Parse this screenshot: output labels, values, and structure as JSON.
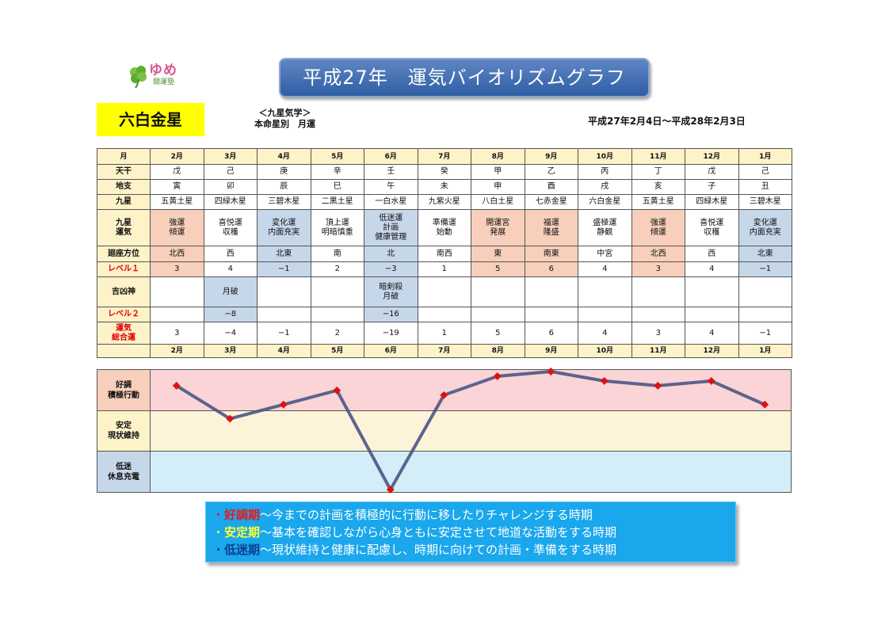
{
  "header": {
    "logo_text": "ゆめ",
    "logo_sub": "開運塾",
    "title": "平成27年　運気バイオリズムグラフ",
    "star": "六白金星",
    "subtitle_line1": "＜九星気学＞",
    "subtitle_line2": "本命星別　月運",
    "period": "平成27年2月4日～平成28年2月3日"
  },
  "row_labels": {
    "month": "月",
    "tenkan": "天干",
    "chishi": "地支",
    "kusei": "九星",
    "kusei_unki_1": "九星",
    "kusei_unki_2": "運気",
    "direction": "廻座方位",
    "level1": "レベル１",
    "kikkyo": "吉凶神",
    "level2": "レベル２",
    "total_1": "運気",
    "total_2": "総合運"
  },
  "months": [
    "2月",
    "3月",
    "4月",
    "5月",
    "6月",
    "7月",
    "8月",
    "9月",
    "10月",
    "11月",
    "12月",
    "1月"
  ],
  "tenkan": [
    "戊",
    "己",
    "庚",
    "辛",
    "壬",
    "癸",
    "甲",
    "乙",
    "丙",
    "丁",
    "戊",
    "己"
  ],
  "chishi": [
    "寅",
    "卯",
    "辰",
    "巳",
    "午",
    "未",
    "申",
    "酉",
    "戌",
    "亥",
    "子",
    "丑"
  ],
  "kusei": [
    "五黄土星",
    "四緑木星",
    "三碧木星",
    "二黒土星",
    "一白水星",
    "九紫火星",
    "八白土星",
    "七赤金星",
    "六白金星",
    "五黄土星",
    "四緑木星",
    "三碧木星"
  ],
  "unki": [
    [
      "強運",
      "傾運"
    ],
    [
      "喜悦運",
      "収穫"
    ],
    [
      "変化運",
      "内面充実"
    ],
    [
      "頂上運",
      "明暗慎重"
    ],
    [
      "低迷運",
      "計画",
      "健康管理"
    ],
    [
      "準備運",
      "始動"
    ],
    [
      "開運宮",
      "発展"
    ],
    [
      "福運",
      "隆盛"
    ],
    [
      "盛極運",
      "静観"
    ],
    [
      "強運",
      "傾運"
    ],
    [
      "喜悦運",
      "収穫"
    ],
    [
      "変化運",
      "内面充実"
    ]
  ],
  "direction": [
    "北西",
    "西",
    "北東",
    "南",
    "北",
    "南西",
    "東",
    "南東",
    "中宮",
    "北西",
    "西",
    "北東"
  ],
  "level1": [
    "3",
    "4",
    "−1",
    "2",
    "−3",
    "1",
    "5",
    "6",
    "4",
    "3",
    "4",
    "−1"
  ],
  "kikkyo": [
    [],
    [
      "月破"
    ],
    [],
    [],
    [
      "暗剣殺",
      "月破"
    ],
    [],
    [],
    [],
    [],
    [],
    [],
    []
  ],
  "level2": [
    "",
    "−8",
    "",
    "",
    "−16",
    "",
    "",
    "",
    "",
    "",
    "",
    ""
  ],
  "total": [
    "3",
    "−4",
    "−1",
    "2",
    "−19",
    "1",
    "5",
    "6",
    "4",
    "3",
    "4",
    "−1"
  ],
  "cell_tone": [
    "good",
    "",
    "bad",
    "",
    "bad",
    "",
    "good",
    "good",
    "",
    "good",
    "",
    "bad"
  ],
  "zones": {
    "good_1": "好調",
    "good_2": "積極行動",
    "stable_1": "安定",
    "stable_2": "現状維持",
    "low_1": "低迷",
    "low_2": "休息充電"
  },
  "colors": {
    "good_zone": "#fad4d6",
    "stable_zone": "#fdf3d9",
    "low_zone": "#d4eef9",
    "good_label": "#f7cfba",
    "stable_label": "#fdf2c8",
    "low_label": "#c6d7ea",
    "line": "#4a5584",
    "marker": "#e01010"
  },
  "chart_data": {
    "type": "line",
    "categories": [
      "2月",
      "3月",
      "4月",
      "5月",
      "6月",
      "7月",
      "8月",
      "9月",
      "10月",
      "11月",
      "12月",
      "1月"
    ],
    "series": [
      {
        "values": [
          3,
          -4,
          -1,
          2,
          -19,
          1,
          5,
          6,
          4,
          3,
          4,
          -1
        ]
      }
    ],
    "ylim": [
      -19,
      6
    ],
    "zones": [
      {
        "label": "好調 積極行動"
      },
      {
        "label": "安定 現状維持"
      },
      {
        "label": "低迷 休息充電"
      }
    ]
  },
  "legend": {
    "item1_bullet": "・",
    "item1_key": "好調期",
    "item1_text": "～今までの計画を積極的に行動に移したりチャレンジする時期",
    "item2_bullet": "・",
    "item2_key": "安定期",
    "item2_text": "～基本を確認しながら心身ともに安定させて地道な活動をする時期",
    "item3_bullet": "・",
    "item3_key": "低迷期",
    "item3_text": "～現状維持と健康に配慮し、時期に向けての計画・準備をする時期"
  }
}
